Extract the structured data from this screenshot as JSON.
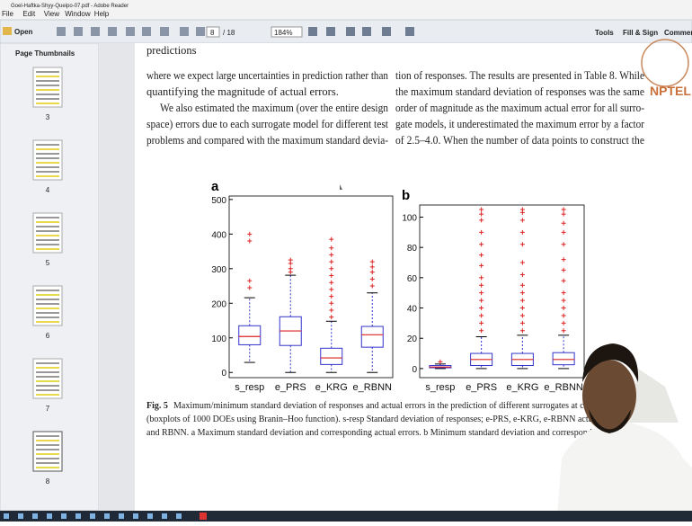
{
  "window": {
    "title": "Goel-Haftka-Shyy-Queipo-07.pdf - Adobe Reader",
    "menu": [
      "File",
      "Edit",
      "View",
      "Window",
      "Help"
    ]
  },
  "toolbar": {
    "open": "Open",
    "page": "8",
    "page_count": "/ 18",
    "zoom": "184%",
    "tools": "Tools",
    "fill_sign": "Fill & Sign",
    "comment": "Commen"
  },
  "sidebar": {
    "title": "Page Thumbnails",
    "pages": [
      "3",
      "4",
      "5",
      "6",
      "7",
      "8"
    ]
  },
  "logo": "NPTEL",
  "document": {
    "top_line": "predictions",
    "left_column": [
      "where we expect large uncertainties in prediction rather than",
      "quantifying the magnitude of actual errors.",
      "We also estimated the maximum (over the entire design",
      "space) errors due to each surrogate model for different test",
      "problems and compared with the maximum standard devia-"
    ],
    "right_column": [
      "tion of responses. The results are presented in Table 8. While",
      "the maximum standard deviation of responses was the same",
      "order of magnitude as the maximum actual error for all surro-",
      "gate models, it underestimated the maximum error by a factor",
      "of 2.5–4.0. When the number of data points to construct the"
    ],
    "caption_label": "Fig. 5",
    "caption": [
      "Maximum/minimum standard deviation of responses and actual errors in the prediction of different surrogates at corresp",
      "(boxplots of 1000 DOEs using Branin–Hoo function). s-resp Standard deviation of responses; e-PRS, e-KRG, e-RBNN actual error",
      "and RBNN. a Maximum standard deviation and corresponding actual errors. b Minimum standard deviation and correspondin"
    ]
  },
  "figure": {
    "type": "boxplot",
    "panels": [
      {
        "label": "a",
        "ylim": [
          -15,
          510
        ],
        "yticks": [
          0,
          100,
          200,
          300,
          400,
          500
        ],
        "categories": [
          "s_resp",
          "e_PRS",
          "e_KRG",
          "e_RBNN"
        ],
        "boxes": [
          {
            "whisker_low": 29,
            "q1": 80,
            "median": 104,
            "q3": 135,
            "whisker_high": 216,
            "outliers": [
              245,
              265,
              380,
              400
            ]
          },
          {
            "whisker_low": 0,
            "q1": 78,
            "median": 120,
            "q3": 161,
            "whisker_high": 281,
            "outliers": [
              290,
              300,
              315,
              325
            ]
          },
          {
            "whisker_low": 0,
            "q1": 23,
            "median": 42,
            "q3": 70,
            "whisker_high": 148,
            "outliers": [
              160,
              180,
              200,
              220,
              240,
              260,
              280,
              300,
              320,
              340,
              360,
              385
            ]
          },
          {
            "whisker_low": 0,
            "q1": 73,
            "median": 109,
            "q3": 133,
            "whisker_high": 230,
            "outliers": [
              250,
              270,
              290,
              305,
              320
            ]
          }
        ]
      },
      {
        "label": "b",
        "ylim": [
          -6,
          108
        ],
        "yticks": [
          0,
          20,
          40,
          60,
          80,
          100
        ],
        "categories": [
          "s_resp",
          "e_PRS",
          "e_KRG",
          "e_RBNN"
        ],
        "boxes": [
          {
            "whisker_low": 0,
            "q1": 0.5,
            "median": 1,
            "q3": 2,
            "whisker_high": 3,
            "outliers": [
              4.5
            ]
          },
          {
            "whisker_low": 0,
            "q1": 2,
            "median": 6,
            "q3": 10,
            "whisker_high": 21,
            "outliers": [
              25,
              30,
              35,
              40,
              45,
              50,
              55,
              60,
              68,
              75,
              82,
              90,
              98,
              102,
              105
            ]
          },
          {
            "whisker_low": 0,
            "q1": 2,
            "median": 6,
            "q3": 10,
            "whisker_high": 22,
            "outliers": [
              25,
              30,
              35,
              40,
              45,
              50,
              55,
              62,
              70,
              82,
              90,
              98,
              103,
              105
            ]
          },
          {
            "whisker_low": 0,
            "q1": 2.5,
            "median": 6,
            "q3": 10.5,
            "whisker_high": 22,
            "outliers": [
              25,
              30,
              35,
              40,
              45,
              50,
              58,
              65,
              72,
              82,
              90,
              96,
              102,
              105
            ]
          }
        ]
      }
    ]
  }
}
